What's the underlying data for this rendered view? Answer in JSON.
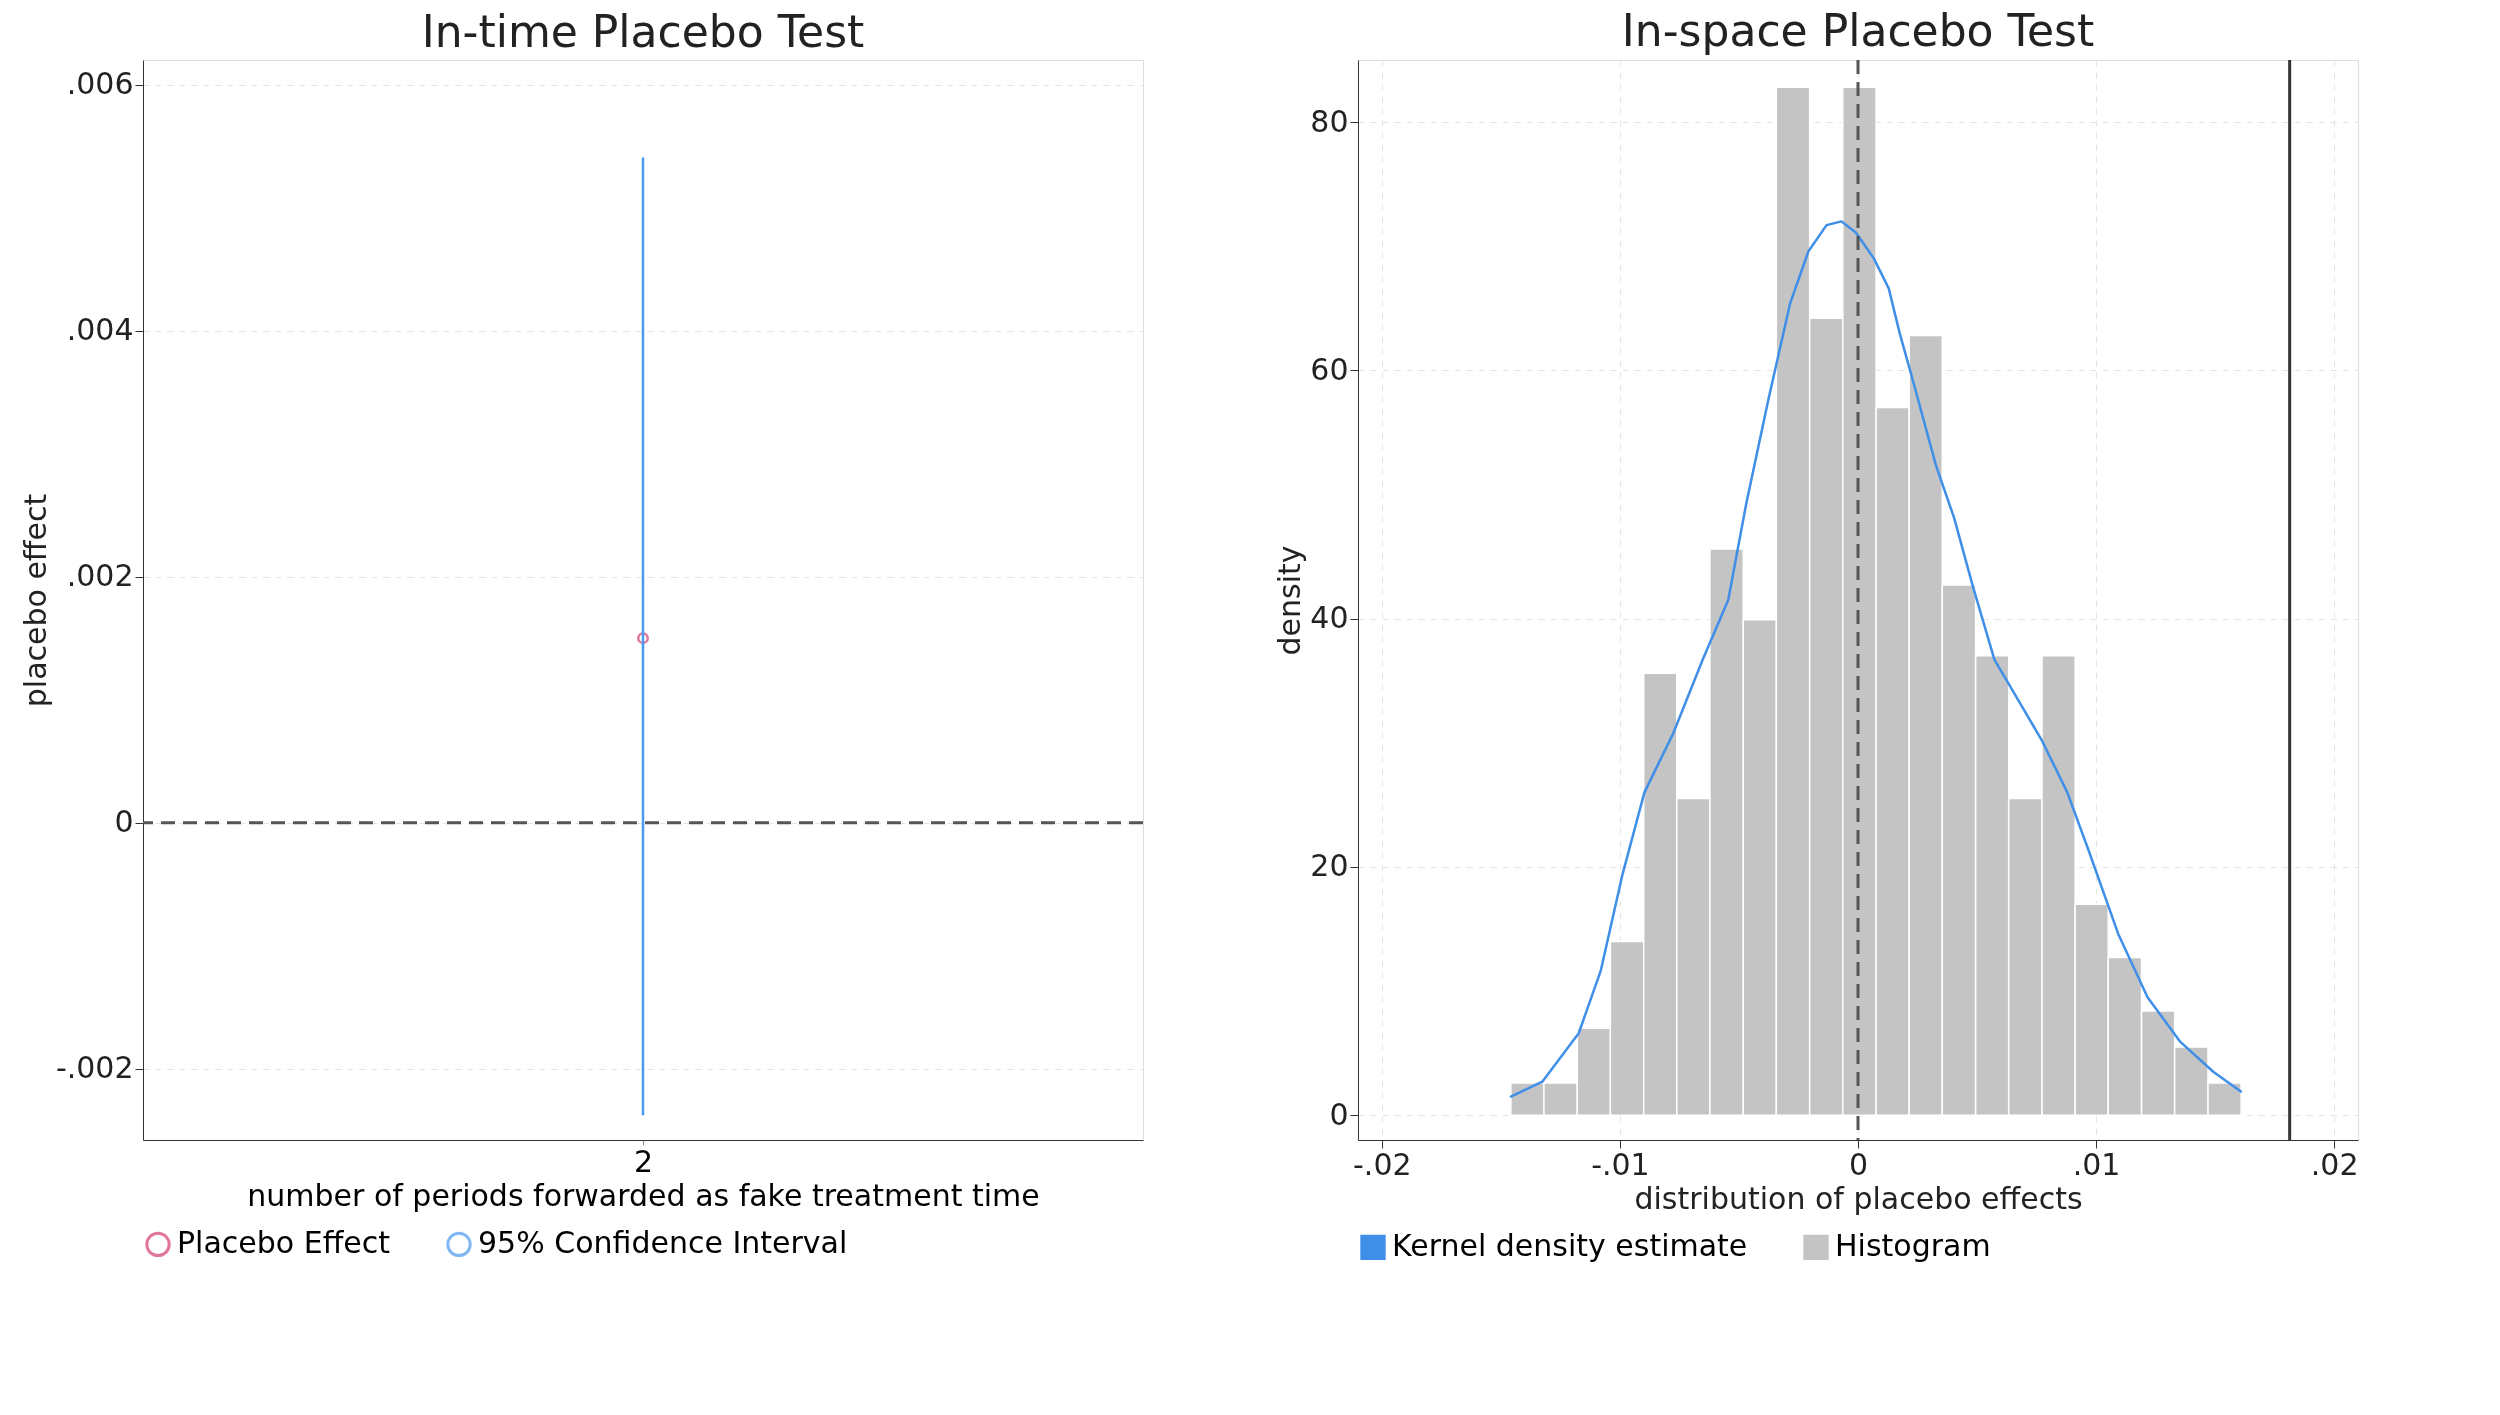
{
  "chart_data": [
    {
      "type": "scatter",
      "title": "In-time Placebo Test",
      "xlabel": "number of periods forwarded as fake treatment time",
      "ylabel": "placebo effect",
      "categories": [
        "2"
      ],
      "series": [
        {
          "name": "Placebo Effect",
          "color": "#d63d6e",
          "values": [
            0.0015
          ],
          "marker": "circle"
        },
        {
          "name": "95% Confidence Interval",
          "type": "line",
          "color": "#4a9af0",
          "x": [
            "2",
            "2"
          ],
          "values": [
            -0.00237,
            0.0054
          ]
        }
      ],
      "ylim": [
        -0.00258,
        0.0062
      ],
      "yticks": [
        {
          "value": -0.002,
          "label": "-.002"
        },
        {
          "value": 0,
          "label": "0"
        },
        {
          "value": 0.002,
          "label": ".002"
        },
        {
          "value": 0.004,
          "label": ".004"
        },
        {
          "value": 0.006,
          "label": ".006"
        }
      ],
      "ref_lines": [
        {
          "axis": "y",
          "value": 0,
          "color": "#555555",
          "line_style": "dashed"
        }
      ],
      "grid": "y",
      "legend": "bottom"
    },
    {
      "type": "histogram",
      "title": "In-space Placebo Test",
      "xlabel": "distribution of placebo effects",
      "ylabel": "density",
      "series": [
        {
          "name": "Kernel density estimate",
          "type": "line",
          "color": "#3f8fe8",
          "x": [
            -0.01458,
            -0.01326,
            -0.01173,
            -0.01081,
            -0.00989,
            -0.00897,
            -0.00775,
            -0.00652,
            -0.00545,
            -0.00469,
            -0.00377,
            -0.00285,
            -0.00208,
            -0.00132,
            -0.0007,
            -9e-05,
            0.00067,
            0.00129,
            0.00175,
            0.00236,
            0.00328,
            0.00404,
            0.00481,
            0.00573,
            0.00665,
            0.00772,
            0.00879,
            0.00971,
            0.01093,
            0.01216,
            0.01354,
            0.01492,
            0.01608
          ],
          "values": [
            1.5,
            2.7,
            6.6,
            11.6,
            19.4,
            26.0,
            30.8,
            36.7,
            41.5,
            49.3,
            57.6,
            65.4,
            69.6,
            71.7,
            72.0,
            71.1,
            69.0,
            66.6,
            63.0,
            58.8,
            52.3,
            48.1,
            42.7,
            36.7,
            33.7,
            30.2,
            26.0,
            21.2,
            14.6,
            9.5,
            5.9,
            3.5,
            1.9
          ]
        },
        {
          "name": "Histogram",
          "color": "#c4c4c4",
          "bins": [
            -0.01458,
            -0.01319,
            -0.01179,
            -0.0104,
            -0.009,
            -0.00761,
            -0.00622,
            -0.00482,
            -0.00343,
            -0.00203,
            -0.00064,
            0.00076,
            0.00215,
            0.00354,
            0.00494,
            0.00633,
            0.00773,
            0.00912,
            0.01051,
            0.01191,
            0.0133,
            0.0147,
            0.01609
          ],
          "values": [
            2.6,
            2.6,
            7.0,
            14.0,
            35.6,
            25.5,
            45.6,
            39.9,
            82.8,
            64.2,
            82.8,
            57.0,
            62.8,
            42.7,
            37.0,
            25.5,
            37.0,
            17.0,
            12.7,
            8.4,
            5.5,
            2.6
          ]
        }
      ],
      "xlim": [
        -0.021,
        0.021
      ],
      "xticks": [
        {
          "value": -0.02,
          "label": "-.02"
        },
        {
          "value": -0.01,
          "label": "-.01"
        },
        {
          "value": 0,
          "label": "0"
        },
        {
          "value": 0.01,
          "label": ".01"
        },
        {
          "value": 0.02,
          "label": ".02"
        }
      ],
      "ylim": [
        -2,
        85
      ],
      "yticks": [
        0,
        20,
        40,
        60,
        80
      ],
      "ref_lines": [
        {
          "axis": "x",
          "value": 0,
          "color": "#555555",
          "line_style": "dashed"
        },
        {
          "axis": "x",
          "value": 0.01813,
          "color": "#333333",
          "line_style": "solid"
        }
      ],
      "grid": true,
      "legend": "bottom"
    }
  ]
}
